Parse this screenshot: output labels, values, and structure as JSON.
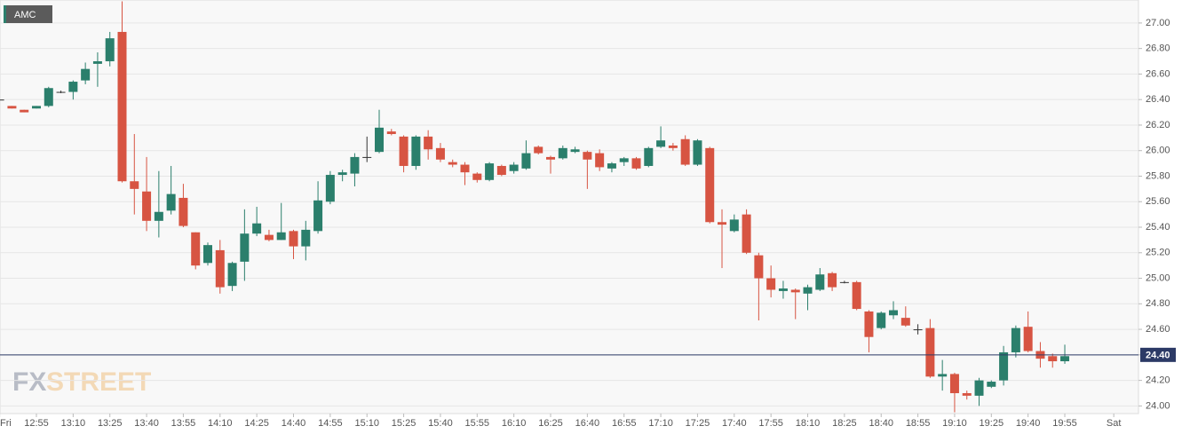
{
  "chart_data": {
    "type": "candlestick",
    "name": "AMC",
    "watermark": {
      "prefix": "FX",
      "suffix": "STREET"
    },
    "colors": {
      "up": "#2b7f6c",
      "down": "#d75442"
    },
    "grid": true,
    "ylim": [
      23.94,
      27.18
    ],
    "yticks": [
      {
        "value": 24.0,
        "label": "24.00"
      },
      {
        "value": 24.2,
        "label": "24.20"
      },
      {
        "value": 24.4,
        "label": "24.40"
      },
      {
        "value": 24.6,
        "label": "24.60"
      },
      {
        "value": 24.8,
        "label": "24.80"
      },
      {
        "value": 25.0,
        "label": "25.00"
      },
      {
        "value": 25.2,
        "label": "25.20"
      },
      {
        "value": 25.4,
        "label": "25.40"
      },
      {
        "value": 25.6,
        "label": "25.60"
      },
      {
        "value": 25.8,
        "label": "25.80"
      },
      {
        "value": 26.0,
        "label": "26.00"
      },
      {
        "value": 26.2,
        "label": "26.20"
      },
      {
        "value": 26.4,
        "label": "26.40"
      },
      {
        "value": 26.6,
        "label": "26.60"
      },
      {
        "value": 26.8,
        "label": "26.80"
      },
      {
        "value": 27.0,
        "label": "27.00"
      }
    ],
    "last_price": {
      "value": 24.4,
      "label": "24.40"
    },
    "categories": [
      "Fri",
      null,
      null,
      "12:55",
      null,
      null,
      "13:10",
      null,
      null,
      "13:25",
      null,
      null,
      "13:40",
      null,
      null,
      "13:55",
      null,
      null,
      "14:10",
      null,
      null,
      "14:25",
      null,
      null,
      "14:40",
      null,
      null,
      "14:55",
      null,
      null,
      "15:10",
      null,
      null,
      "15:25",
      null,
      null,
      "15:40",
      null,
      null,
      "15:55",
      null,
      null,
      "16:10",
      null,
      null,
      "16:25",
      null,
      null,
      "16:40",
      null,
      null,
      "16:55",
      null,
      null,
      "17:10",
      null,
      null,
      "17:25",
      null,
      null,
      "17:40",
      null,
      null,
      "17:55",
      null,
      null,
      "18:10",
      null,
      null,
      "18:25",
      null,
      null,
      "18:40",
      null,
      null,
      "18:55",
      null,
      null,
      "19:10",
      null,
      null,
      "19:25",
      null,
      null,
      "19:40",
      null,
      null,
      "19:55",
      null,
      null,
      null,
      "Sat"
    ],
    "open": [
      26.4,
      26.35,
      26.32,
      26.33,
      26.35,
      26.46,
      26.46,
      26.55,
      26.68,
      26.7,
      26.93,
      25.76,
      25.68,
      25.45,
      25.53,
      25.63,
      25.36,
      25.12,
      25.22,
      24.94,
      25.13,
      25.35,
      25.34,
      25.3,
      25.37,
      25.25,
      25.37,
      25.6,
      25.81,
      25.82,
      25.95,
      25.99,
      26.15,
      26.11,
      25.88,
      26.11,
      26.02,
      25.91,
      25.89,
      25.82,
      25.77,
      25.88,
      25.84,
      25.86,
      26.03,
      25.95,
      25.94,
      25.99,
      25.99,
      25.98,
      25.86,
      25.91,
      25.94,
      25.88,
      26.03,
      26.04,
      26.09,
      25.89,
      26.02,
      25.44,
      25.37,
      25.5,
      25.18,
      25.0,
      24.9,
      24.91,
      24.88,
      24.91,
      25.04,
      24.97,
      24.97,
      24.74,
      24.61,
      24.71,
      24.69,
      24.6,
      24.61,
      24.23,
      24.25,
      24.1,
      24.08,
      24.15,
      24.2,
      24.42,
      24.62,
      24.43,
      24.39,
      24.35,
      null,
      null,
      null,
      null
    ],
    "high": [
      26.4,
      26.35,
      26.32,
      26.35,
      26.5,
      26.47,
      26.55,
      26.69,
      26.77,
      26.93,
      27.17,
      26.13,
      25.95,
      25.84,
      25.88,
      25.74,
      25.36,
      25.28,
      25.3,
      25.13,
      25.54,
      25.56,
      25.38,
      25.59,
      25.38,
      25.45,
      25.76,
      25.84,
      25.85,
      25.98,
      26.11,
      26.32,
      26.17,
      26.12,
      26.12,
      26.16,
      26.06,
      25.93,
      25.91,
      25.83,
      25.91,
      25.89,
      25.91,
      26.08,
      26.04,
      25.96,
      26.04,
      26.03,
      26.0,
      26.01,
      25.91,
      25.95,
      25.95,
      26.03,
      26.19,
      26.06,
      26.12,
      26.09,
      26.03,
      25.54,
      25.5,
      25.54,
      25.2,
      25.1,
      24.98,
      24.92,
      24.95,
      25.08,
      25.05,
      24.98,
      24.98,
      24.75,
      24.74,
      24.82,
      24.78,
      24.64,
      24.68,
      24.36,
      24.26,
      24.12,
      24.22,
      24.2,
      24.47,
      24.63,
      24.74,
      24.5,
      24.41,
      24.48,
      null,
      null,
      null,
      null
    ],
    "low": [
      26.4,
      26.33,
      26.3,
      26.33,
      26.34,
      26.45,
      26.4,
      26.52,
      26.5,
      26.66,
      25.75,
      25.5,
      25.37,
      25.32,
      25.5,
      25.4,
      25.07,
      25.1,
      24.88,
      24.9,
      24.98,
      25.33,
      25.29,
      25.3,
      25.15,
      25.14,
      25.35,
      25.58,
      25.76,
      25.72,
      25.91,
      25.98,
      26.12,
      25.83,
      25.85,
      25.93,
      25.91,
      25.87,
      25.73,
      25.75,
      25.76,
      25.8,
      25.82,
      25.85,
      25.97,
      25.82,
      25.93,
      25.98,
      25.7,
      25.84,
      25.83,
      25.88,
      25.85,
      25.87,
      26.02,
      26.0,
      25.88,
      25.88,
      25.43,
      25.08,
      25.36,
      25.19,
      24.67,
      24.85,
      24.84,
      24.68,
      24.75,
      24.9,
      24.9,
      24.96,
      24.75,
      24.42,
      24.6,
      24.68,
      24.62,
      24.56,
      24.22,
      24.12,
      23.95,
      24.05,
      24.0,
      24.14,
      24.16,
      24.38,
      24.42,
      24.3,
      24.3,
      24.33,
      null,
      null,
      null,
      null
    ],
    "close": [
      26.4,
      26.33,
      26.3,
      26.35,
      26.49,
      26.46,
      26.54,
      26.64,
      26.7,
      26.88,
      25.76,
      25.7,
      25.45,
      25.52,
      25.66,
      25.41,
      25.1,
      25.26,
      24.93,
      25.12,
      25.35,
      25.43,
      25.3,
      25.36,
      25.25,
      25.38,
      25.61,
      25.81,
      25.83,
      25.95,
      25.95,
      26.18,
      26.13,
      25.88,
      26.11,
      26.01,
      25.93,
      25.89,
      25.83,
      25.77,
      25.9,
      25.81,
      25.89,
      25.98,
      25.98,
      25.93,
      26.02,
      26.01,
      25.93,
      25.87,
      25.9,
      25.94,
      25.86,
      26.02,
      26.08,
      26.02,
      25.89,
      26.08,
      25.44,
      25.42,
      25.46,
      25.2,
      25.0,
      24.91,
      24.92,
      24.89,
      24.93,
      25.03,
      24.93,
      24.97,
      24.76,
      24.54,
      24.73,
      24.75,
      24.63,
      24.6,
      24.23,
      24.25,
      24.1,
      24.08,
      24.2,
      24.19,
      24.42,
      24.61,
      24.43,
      24.37,
      24.35,
      24.39,
      null,
      null,
      null,
      null
    ]
  }
}
